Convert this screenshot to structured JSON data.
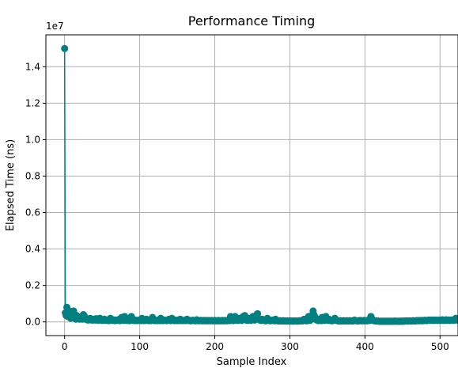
{
  "chart_data": {
    "type": "line",
    "title": "Performance Timing",
    "xlabel": "Sample Index",
    "ylabel": "Elapsed Time (ns)",
    "y_offset_label": "1e7",
    "xlim": [
      -24.95,
      523.95
    ],
    "ylim": [
      -750000,
      15750000
    ],
    "x_ticks": [
      0,
      100,
      200,
      300,
      400,
      500
    ],
    "x_tick_labels": [
      "0",
      "100",
      "200",
      "300",
      "400",
      "500"
    ],
    "y_ticks": [
      0,
      2000000,
      4000000,
      6000000,
      8000000,
      10000000,
      12000000,
      14000000
    ],
    "y_tick_labels": [
      "0.0",
      "0.2",
      "0.4",
      "0.6",
      "0.8",
      "1.0",
      "1.2",
      "1.4"
    ],
    "grid": true,
    "marker": "circle",
    "color": "#008080",
    "series": [
      {
        "x_start": 0,
        "x_step": 1,
        "values": [
          15000000,
          500000,
          350000,
          800000,
          300000,
          450000,
          600000,
          250000,
          200000,
          400000,
          350000,
          250000,
          600000,
          300000,
          200000,
          150000,
          350000,
          250000,
          200000,
          180000,
          150000,
          200000,
          250000,
          300000,
          150000,
          400000,
          350000,
          200000,
          150000,
          180000,
          120000,
          100000,
          150000,
          130000,
          200000,
          150000,
          100000,
          120000,
          100000,
          150000,
          120000,
          100000,
          180000,
          130000,
          100000,
          90000,
          120000,
          200000,
          150000,
          100000,
          80000,
          120000,
          100000,
          150000,
          90000,
          100000,
          80000,
          110000,
          100000,
          70000,
          90000,
          200000,
          150000,
          100000,
          80000,
          120000,
          90000,
          70000,
          100000,
          80000,
          90000,
          100000,
          80000,
          150000,
          70000,
          100000,
          250000,
          100000,
          90000,
          80000,
          300000,
          150000,
          100000,
          80000,
          90000,
          100000,
          70000,
          80000,
          100000,
          300000,
          150000,
          90000,
          80000,
          100000,
          70000,
          80000,
          90000,
          70000,
          80000,
          100000,
          90000,
          80000,
          70000,
          200000,
          100000,
          80000,
          70000,
          90000,
          80000,
          150000,
          100000,
          80000,
          70000,
          90000,
          80000,
          70000,
          100000,
          250000,
          90000,
          80000,
          70000,
          80000,
          90000,
          70000,
          80000,
          100000,
          80000,
          70000,
          200000,
          90000,
          80000,
          70000,
          80000,
          100000,
          90000,
          80000,
          70000,
          80000,
          90000,
          150000,
          80000,
          70000,
          80000,
          200000,
          90000,
          80000,
          70000,
          80000,
          90000,
          80000,
          70000,
          100000,
          80000,
          70000,
          150000,
          80000,
          90000,
          70000,
          80000,
          90000,
          80000,
          70000,
          100000,
          150000,
          80000,
          90000,
          70000,
          80000,
          60000,
          70000,
          80000,
          90000,
          70000,
          80000,
          60000,
          70000,
          120000,
          80000,
          70000,
          60000,
          70000,
          80000,
          70000,
          60000,
          70000,
          80000,
          60000,
          70000,
          80000,
          60000,
          70000,
          60000,
          80000,
          70000,
          60000,
          70000,
          80000,
          60000,
          70000,
          60000,
          80000,
          70000,
          60000,
          70000,
          60000,
          80000,
          60000,
          70000,
          60000,
          70000,
          80000,
          60000,
          70000,
          60000,
          80000,
          70000,
          60000,
          70000,
          100000,
          80000,
          70000,
          300000,
          90000,
          250000,
          80000,
          70000,
          150000,
          300000,
          200000,
          100000,
          90000,
          80000,
          100000,
          200000,
          150000,
          100000,
          80000,
          250000,
          300000,
          200000,
          350000,
          150000,
          100000,
          90000,
          80000,
          200000,
          150000,
          100000,
          80000,
          200000,
          250000,
          300000,
          150000,
          100000,
          200000,
          300000,
          400000,
          450000,
          200000,
          150000,
          100000,
          90000,
          80000,
          150000,
          100000,
          90000,
          80000,
          70000,
          60000,
          80000,
          200000,
          150000,
          80000,
          70000,
          60000,
          80000,
          70000,
          100000,
          80000,
          70000,
          60000,
          150000,
          80000,
          70000,
          60000,
          50000,
          60000,
          70000,
          60000,
          50000,
          60000,
          70000,
          50000,
          60000,
          50000,
          40000,
          50000,
          60000,
          50000,
          40000,
          50000,
          60000,
          50000,
          40000,
          50000,
          40000,
          50000,
          60000,
          50000,
          40000,
          50000,
          40000,
          50000,
          60000,
          70000,
          60000,
          50000,
          60000,
          100000,
          150000,
          80000,
          70000,
          60000,
          80000,
          70000,
          300000,
          100000,
          80000,
          150000,
          350000,
          250000,
          600000,
          400000,
          300000,
          150000,
          200000,
          100000,
          80000,
          70000,
          150000,
          100000,
          80000,
          70000,
          250000,
          150000,
          100000,
          80000,
          100000,
          300000,
          150000,
          100000,
          80000,
          150000,
          100000,
          80000,
          70000,
          60000,
          100000,
          80000,
          150000,
          200000,
          100000,
          80000,
          70000,
          60000,
          50000,
          60000,
          70000,
          50000,
          60000,
          50000,
          60000,
          70000,
          60000,
          50000,
          60000,
          70000,
          60000,
          50000,
          60000,
          70000,
          60000,
          50000,
          60000,
          50000,
          60000,
          100000,
          80000,
          70000,
          60000,
          50000,
          60000,
          70000,
          60000,
          80000,
          70000,
          60000,
          70000,
          60000,
          80000,
          70000,
          60000,
          70000,
          60000,
          80000,
          70000,
          150000,
          80000,
          300000,
          200000,
          100000,
          80000,
          70000,
          60000,
          50000,
          60000,
          50000,
          40000,
          50000,
          40000,
          30000,
          40000,
          30000,
          40000,
          30000,
          40000,
          30000,
          40000,
          30000,
          40000,
          30000,
          40000,
          30000,
          40000,
          30000,
          40000,
          30000,
          40000,
          30000,
          40000,
          50000,
          40000,
          30000,
          40000,
          30000,
          40000,
          30000,
          40000,
          50000,
          40000,
          30000,
          40000,
          50000,
          40000,
          50000,
          60000,
          50000,
          40000,
          50000,
          60000,
          50000,
          40000,
          50000,
          60000,
          70000,
          60000,
          50000,
          60000,
          70000,
          60000,
          80000,
          70000,
          60000,
          70000,
          80000,
          70000,
          60000,
          80000,
          70000,
          80000,
          90000,
          80000,
          70000,
          80000,
          90000,
          100000,
          80000,
          90000,
          100000,
          90000,
          80000,
          90000,
          100000,
          80000,
          90000,
          100000,
          90000,
          80000,
          90000,
          100000,
          80000,
          90000,
          100000,
          120000,
          80000,
          100000,
          90000,
          80000,
          120000,
          100000,
          90000,
          100000,
          110000,
          80000,
          90000,
          100000,
          110000,
          100000,
          90000,
          100000,
          150000,
          200000,
          100000
        ]
      }
    ]
  }
}
